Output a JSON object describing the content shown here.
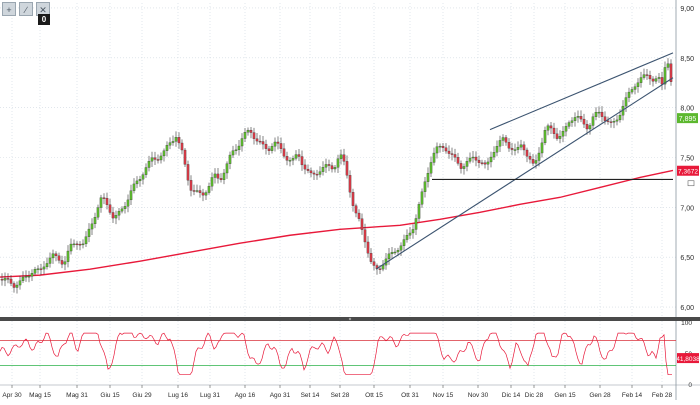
{
  "toolbar": {
    "icons": [
      "crosshair-icon",
      "draw-icon",
      "close-icon"
    ],
    "glyphs": [
      "+",
      "∕",
      "✕"
    ],
    "badge": "0"
  },
  "colors": {
    "up": "#5cb82e",
    "down": "#d63b48",
    "ma": "#e8193a",
    "trendline": "#3c5470",
    "horizontal": "#222222",
    "rsi": "#e8193a",
    "rsi_upper": "#d9303a",
    "rsi_lower": "#2bb24a",
    "price_badge": "#5cb82e",
    "ma_badge": "#e8193a",
    "separator": "#4a4a4a"
  },
  "chart_data": [
    {
      "type": "candlestick",
      "y_ticks": [
        "9,00",
        "8,50",
        "8,00",
        "7,50",
        "7,00",
        "6,50",
        "6,00"
      ],
      "y_tick_values": [
        9.0,
        8.5,
        8.0,
        7.5,
        7.0,
        6.5,
        6.0
      ],
      "ylim": [
        5.95,
        9.05
      ],
      "x_ticks": [
        "Apr 30",
        "Mag 15",
        "Mag 31",
        "Giu 15",
        "Giu 29",
        "Lug 16",
        "Lug 31",
        "Ago 16",
        "Ago 31",
        "Set 14",
        "Set 28",
        "Ott 15",
        "Ott 31",
        "Nov 15",
        "Nov 30",
        "Dic 14",
        "Dic 28",
        "Gen 15",
        "Gen 28",
        "Feb 14",
        "Feb 28"
      ],
      "price_label": "7,895",
      "price_value": 7.895,
      "ma_label": "7,3672",
      "ma_value": 7.3672,
      "close_path": [
        [
          0,
          6.28
        ],
        [
          8,
          6.26
        ],
        [
          14,
          6.22
        ],
        [
          20,
          6.25
        ],
        [
          28,
          6.32
        ],
        [
          34,
          6.38
        ],
        [
          40,
          6.35
        ],
        [
          46,
          6.45
        ],
        [
          52,
          6.52
        ],
        [
          58,
          6.48
        ],
        [
          64,
          6.44
        ],
        [
          70,
          6.6
        ],
        [
          78,
          6.66
        ],
        [
          84,
          6.62
        ],
        [
          90,
          6.8
        ],
        [
          96,
          6.95
        ],
        [
          102,
          7.1
        ],
        [
          108,
          7.02
        ],
        [
          114,
          6.88
        ],
        [
          120,
          6.95
        ],
        [
          126,
          7.05
        ],
        [
          132,
          7.18
        ],
        [
          140,
          7.3
        ],
        [
          146,
          7.4
        ],
        [
          152,
          7.48
        ],
        [
          158,
          7.5
        ],
        [
          164,
          7.55
        ],
        [
          170,
          7.65
        ],
        [
          176,
          7.72
        ],
        [
          182,
          7.55
        ],
        [
          186,
          7.38
        ],
        [
          190,
          7.2
        ],
        [
          196,
          7.15
        ],
        [
          202,
          7.12
        ],
        [
          208,
          7.2
        ],
        [
          214,
          7.32
        ],
        [
          220,
          7.28
        ],
        [
          226,
          7.4
        ],
        [
          232,
          7.55
        ],
        [
          238,
          7.62
        ],
        [
          244,
          7.72
        ],
        [
          250,
          7.78
        ],
        [
          256,
          7.68
        ],
        [
          262,
          7.62
        ],
        [
          268,
          7.58
        ],
        [
          274,
          7.65
        ],
        [
          280,
          7.6
        ],
        [
          286,
          7.5
        ],
        [
          292,
          7.45
        ],
        [
          298,
          7.55
        ],
        [
          304,
          7.4
        ],
        [
          310,
          7.32
        ],
        [
          316,
          7.35
        ],
        [
          322,
          7.38
        ],
        [
          328,
          7.42
        ],
        [
          334,
          7.4
        ],
        [
          340,
          7.52
        ],
        [
          344,
          7.45
        ],
        [
          348,
          7.3
        ],
        [
          352,
          7.05
        ],
        [
          356,
          6.92
        ],
        [
          360,
          6.85
        ],
        [
          364,
          6.72
        ],
        [
          368,
          6.55
        ],
        [
          372,
          6.4
        ],
        [
          378,
          6.38
        ],
        [
          384,
          6.45
        ],
        [
          390,
          6.52
        ],
        [
          396,
          6.58
        ],
        [
          402,
          6.62
        ],
        [
          408,
          6.72
        ],
        [
          414,
          6.82
        ],
        [
          420,
          7.05
        ],
        [
          426,
          7.3
        ],
        [
          432,
          7.5
        ],
        [
          438,
          7.6
        ],
        [
          444,
          7.62
        ],
        [
          450,
          7.52
        ],
        [
          456,
          7.48
        ],
        [
          462,
          7.4
        ],
        [
          468,
          7.45
        ],
        [
          474,
          7.52
        ],
        [
          480,
          7.45
        ],
        [
          486,
          7.4
        ],
        [
          492,
          7.55
        ],
        [
          498,
          7.62
        ],
        [
          504,
          7.7
        ],
        [
          510,
          7.6
        ],
        [
          516,
          7.55
        ],
        [
          522,
          7.65
        ],
        [
          528,
          7.5
        ],
        [
          534,
          7.4
        ],
        [
          540,
          7.6
        ],
        [
          546,
          7.8
        ],
        [
          552,
          7.78
        ],
        [
          558,
          7.7
        ],
        [
          564,
          7.75
        ],
        [
          570,
          7.88
        ],
        [
          576,
          7.92
        ],
        [
          582,
          7.85
        ],
        [
          588,
          7.8
        ],
        [
          594,
          7.92
        ],
        [
          600,
          7.95
        ],
        [
          606,
          7.88
        ],
        [
          612,
          7.82
        ],
        [
          618,
          7.9
        ],
        [
          624,
          8.05
        ],
        [
          630,
          8.15
        ],
        [
          636,
          8.25
        ],
        [
          642,
          8.3
        ],
        [
          648,
          8.32
        ],
        [
          654,
          8.28
        ],
        [
          658,
          8.3
        ],
        [
          662,
          8.22
        ],
        [
          666,
          8.48
        ],
        [
          670,
          8.45
        ],
        [
          673,
          7.9
        ]
      ],
      "ma_path": [
        [
          0,
          6.3
        ],
        [
          40,
          6.32
        ],
        [
          90,
          6.38
        ],
        [
          140,
          6.46
        ],
        [
          190,
          6.55
        ],
        [
          240,
          6.64
        ],
        [
          290,
          6.72
        ],
        [
          340,
          6.78
        ],
        [
          370,
          6.8
        ],
        [
          400,
          6.82
        ],
        [
          440,
          6.88
        ],
        [
          480,
          6.95
        ],
        [
          520,
          7.03
        ],
        [
          560,
          7.1
        ],
        [
          600,
          7.2
        ],
        [
          640,
          7.3
        ],
        [
          673,
          7.37
        ]
      ],
      "trendlines": [
        {
          "from": [
            376,
            6.38
          ],
          "to": [
            673,
            8.3
          ]
        },
        {
          "from": [
            490,
            7.78
          ],
          "to": [
            673,
            8.55
          ]
        }
      ],
      "horizontal_line": {
        "from": [
          432,
          7.28
        ],
        "to": [
          673,
          7.28
        ]
      }
    },
    {
      "type": "line",
      "y_ticks": [
        "100",
        "50",
        "0"
      ],
      "y_tick_values": [
        100,
        50,
        0
      ],
      "ylim": [
        0,
        100
      ],
      "upper_level": 70,
      "lower_level": 30,
      "label": "41,8038",
      "label_value": 41.8
    }
  ]
}
